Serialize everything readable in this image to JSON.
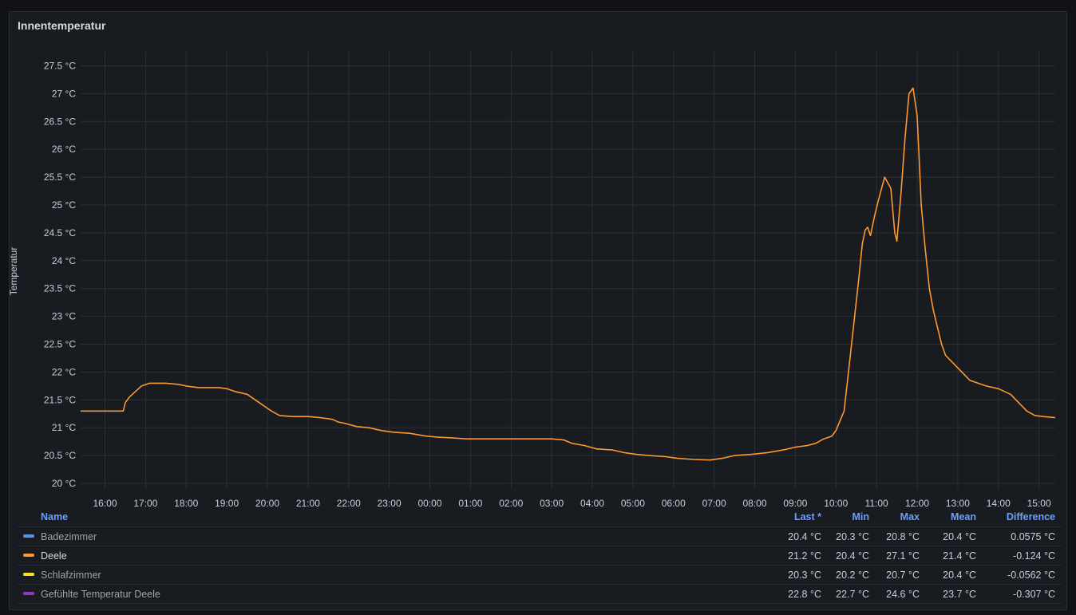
{
  "panel": {
    "title": "Innentemperatur"
  },
  "chart_data": {
    "type": "line",
    "title": "Innentemperatur",
    "ylabel": "Temperatur",
    "xlabel": "",
    "ylim": [
      19.9,
      27.75
    ],
    "y_ticks": [
      "20 °C",
      "20.5 °C",
      "21 °C",
      "21.5 °C",
      "22 °C",
      "22.5 °C",
      "23 °C",
      "23.5 °C",
      "24 °C",
      "24.5 °C",
      "25 °C",
      "25.5 °C",
      "26 °C",
      "26.5 °C",
      "27 °C",
      "27.5 °C"
    ],
    "y_tick_values": [
      20,
      20.5,
      21,
      21.5,
      22,
      22.5,
      23,
      23.5,
      24,
      24.5,
      25,
      25.5,
      26,
      26.5,
      27,
      27.5
    ],
    "x_ticks": [
      "16:00",
      "17:00",
      "18:00",
      "19:00",
      "20:00",
      "21:00",
      "22:00",
      "23:00",
      "00:00",
      "01:00",
      "02:00",
      "03:00",
      "04:00",
      "05:00",
      "06:00",
      "07:00",
      "08:00",
      "09:00",
      "10:00",
      "11:00",
      "12:00",
      "13:00",
      "14:00",
      "15:00"
    ],
    "x_range_hours": [
      15.4,
      39.4
    ],
    "grid": true,
    "legend_placement": "bottom",
    "series": [
      {
        "name": "Deele",
        "color": "#ff9830",
        "x": [
          15.4,
          16.45,
          16.5,
          16.6,
          16.75,
          16.9,
          17.1,
          17.5,
          17.8,
          18.0,
          18.3,
          18.5,
          18.8,
          19.0,
          19.2,
          19.5,
          19.7,
          19.9,
          20.1,
          20.3,
          20.6,
          21.0,
          21.3,
          21.6,
          21.75,
          21.9,
          22.2,
          22.5,
          22.8,
          23.1,
          23.5,
          23.9,
          24.2,
          24.5,
          24.9,
          25.3,
          26.0,
          26.5,
          27.0,
          27.3,
          27.5,
          27.8,
          28.1,
          28.5,
          28.8,
          29.1,
          29.4,
          29.8,
          30.1,
          30.5,
          30.9,
          31.2,
          31.5,
          31.9,
          32.3,
          32.7,
          33.0,
          33.3,
          33.5,
          33.7,
          33.9,
          34.0,
          34.2,
          34.4,
          34.55,
          34.65,
          34.72,
          34.78,
          34.85,
          34.95,
          35.05,
          35.2,
          35.35,
          35.45,
          35.5,
          35.6,
          35.7,
          35.8,
          35.9,
          36.0,
          36.05,
          36.1,
          36.2,
          36.3,
          36.4,
          36.5,
          36.6,
          36.7,
          36.9,
          37.1,
          37.3,
          37.5,
          37.7,
          38.0,
          38.3,
          38.5,
          38.7,
          38.9,
          39.1,
          39.4
        ],
        "y": [
          21.3,
          21.3,
          21.45,
          21.55,
          21.65,
          21.75,
          21.8,
          21.8,
          21.78,
          21.75,
          21.72,
          21.72,
          21.72,
          21.7,
          21.65,
          21.6,
          21.5,
          21.4,
          21.3,
          21.22,
          21.2,
          21.2,
          21.18,
          21.15,
          21.1,
          21.08,
          21.02,
          21.0,
          20.95,
          20.92,
          20.9,
          20.85,
          20.83,
          20.82,
          20.8,
          20.8,
          20.8,
          20.8,
          20.8,
          20.78,
          20.72,
          20.68,
          20.62,
          20.6,
          20.55,
          20.52,
          20.5,
          20.48,
          20.45,
          20.43,
          20.42,
          20.45,
          20.5,
          20.52,
          20.55,
          20.6,
          20.65,
          20.68,
          20.72,
          20.8,
          20.85,
          20.95,
          21.3,
          22.6,
          23.6,
          24.3,
          24.55,
          24.6,
          24.45,
          24.8,
          25.1,
          25.5,
          25.3,
          24.5,
          24.35,
          25.2,
          26.2,
          27.0,
          27.1,
          26.6,
          25.8,
          25.0,
          24.2,
          23.5,
          23.1,
          22.8,
          22.5,
          22.3,
          22.15,
          22.0,
          21.85,
          21.8,
          21.75,
          21.7,
          21.6,
          21.45,
          21.3,
          21.22,
          21.2,
          21.18
        ]
      }
    ]
  },
  "legend": {
    "headers": {
      "name": "Name",
      "last": "Last *",
      "min": "Min",
      "max": "Max",
      "mean": "Mean",
      "diff": "Difference"
    },
    "rows": [
      {
        "name": "Badezimmer",
        "color": "#5794f2",
        "last": "20.4 °C",
        "min": "20.3 °C",
        "max": "20.8 °C",
        "mean": "20.4 °C",
        "diff": "0.0575 °C"
      },
      {
        "name": "Deele",
        "color": "#ff9830",
        "last": "21.2 °C",
        "min": "20.4 °C",
        "max": "27.1 °C",
        "mean": "21.4 °C",
        "diff": "-0.124 °C"
      },
      {
        "name": "Schlafzimmer",
        "color": "#fade2a",
        "last": "20.3 °C",
        "min": "20.2 °C",
        "max": "20.7 °C",
        "mean": "20.4 °C",
        "diff": "-0.0562 °C"
      },
      {
        "name": "Gefühlte Temperatur Deele",
        "color": "#8f3bb8",
        "last": "22.8 °C",
        "min": "22.7 °C",
        "max": "24.6 °C",
        "mean": "23.7 °C",
        "diff": "-0.307 °C"
      }
    ]
  }
}
